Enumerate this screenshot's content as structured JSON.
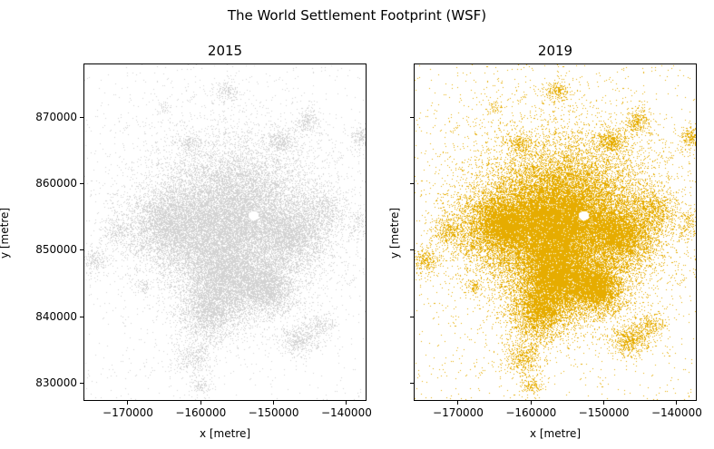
{
  "figure": {
    "title": "The World Settlement Footprint (WSF)"
  },
  "chart_data": [
    {
      "type": "heatmap",
      "title": "2015",
      "xlabel": "x [metre]",
      "ylabel": "y [metre]",
      "xlim": [
        -176100,
        -137250
      ],
      "ylim": [
        827270,
        878050
      ],
      "xticks": [
        -170000,
        -160000,
        -150000,
        -140000
      ],
      "xtick_labels": [
        "−170000",
        "−160000",
        "−150000",
        "−140000"
      ],
      "yticks": [
        830000,
        840000,
        850000,
        860000,
        870000
      ],
      "ytick_labels": [
        "830000",
        "840000",
        "850000",
        "860000",
        "870000"
      ],
      "show_ytick_labels": true,
      "color": "#d3d3d3",
      "grid": false
    },
    {
      "type": "heatmap",
      "title": "2019",
      "xlabel": "x [metre]",
      "ylabel": "y [metre]",
      "xlim": [
        -176100,
        -137250
      ],
      "ylim": [
        827270,
        878050
      ],
      "xticks": [
        -170000,
        -160000,
        -150000,
        -140000
      ],
      "xtick_labels": [
        "−170000",
        "−160000",
        "−150000",
        "−140000"
      ],
      "yticks": [
        830000,
        840000,
        850000,
        860000,
        870000
      ],
      "ytick_labels": [
        "830000",
        "840000",
        "850000",
        "860000",
        "870000"
      ],
      "show_ytick_labels": false,
      "color": "#e6ac00",
      "grid": false
    }
  ]
}
